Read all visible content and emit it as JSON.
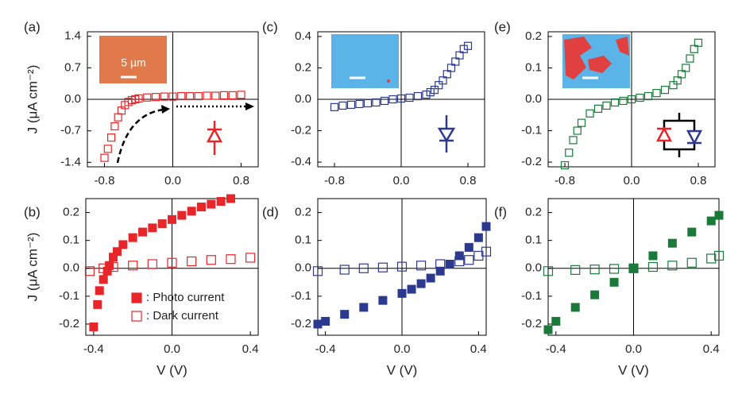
{
  "chart_data": [
    {
      "type": "scatter",
      "label": "(a)",
      "ylabel": "J (μA cm⁻²)",
      "inset_label": "5 µm",
      "xlim": [
        -1.0,
        1.0
      ],
      "xticks": [
        -0.8,
        {
          "value": 0,
          "label": "0.0"
        },
        0.8
      ],
      "ylim": [
        -1.5,
        1.5
      ],
      "yticks": [
        1.4,
        0.7,
        {
          "value": 0,
          "label": "0.0"
        },
        -0.7,
        -1.4
      ],
      "series": [
        {
          "color": "#e8262a",
          "filled": false,
          "x": [
            -0.8,
            -0.76,
            -0.72,
            -0.68,
            -0.64,
            -0.6,
            -0.56,
            -0.52,
            -0.48,
            -0.44,
            -0.4,
            -0.3,
            -0.2,
            -0.1,
            0,
            0.1,
            0.2,
            0.3,
            0.4,
            0.5,
            0.6,
            0.7,
            0.8
          ],
          "values": [
            -1.3,
            -1.1,
            -0.85,
            -0.6,
            -0.4,
            -0.25,
            -0.13,
            -0.06,
            -0.02,
            0.0,
            0.02,
            0.04,
            0.05,
            0.06,
            0.06,
            0.07,
            0.07,
            0.07,
            0.08,
            0.08,
            0.09,
            0.09,
            0.1
          ]
        }
      ]
    },
    {
      "type": "scatter",
      "label": "(b)",
      "ylabel": "J (μA cm⁻²)",
      "xlabel": "V (V)",
      "xlim": [
        -0.44,
        0.44
      ],
      "xticks": [
        -0.4,
        {
          "value": 0,
          "label": "0.0"
        },
        0.4
      ],
      "ylim": [
        -0.24,
        0.25
      ],
      "yticks": [
        0.2,
        0.1,
        {
          "value": 0,
          "label": "0.0"
        },
        -0.1,
        -0.2
      ],
      "series": [
        {
          "name": ": Photo current",
          "color": "#e8262a",
          "filled": true,
          "x": [
            -0.4,
            -0.38,
            -0.37,
            -0.35,
            -0.33,
            -0.32,
            -0.3,
            -0.28,
            -0.25,
            -0.2,
            -0.15,
            -0.1,
            -0.05,
            0,
            0.05,
            0.1,
            0.15,
            0.2,
            0.25,
            0.3
          ],
          "values": [
            -0.21,
            -0.13,
            -0.08,
            -0.04,
            -0.01,
            0.01,
            0.04,
            0.06,
            0.085,
            0.11,
            0.13,
            0.145,
            0.16,
            0.175,
            0.19,
            0.205,
            0.22,
            0.23,
            0.24,
            0.25
          ]
        },
        {
          "name": ": Dark current",
          "color": "#e8262a",
          "filled": false,
          "x": [
            -0.42,
            -0.35,
            -0.3,
            -0.2,
            -0.1,
            0,
            0.1,
            0.2,
            0.3,
            0.4
          ],
          "values": [
            -0.01,
            0.0,
            0.005,
            0.01,
            0.015,
            0.02,
            0.025,
            0.03,
            0.033,
            0.038
          ]
        }
      ]
    },
    {
      "type": "scatter",
      "label": "(c)",
      "xlim": [
        -1.0,
        1.0
      ],
      "xticks": [
        -0.8,
        {
          "value": 0,
          "label": "0.0"
        },
        0.8
      ],
      "ylim": [
        -0.43,
        0.43
      ],
      "yticks": [
        0.4,
        0.2,
        {
          "value": 0,
          "label": "0.0"
        },
        -0.2,
        -0.4
      ],
      "series": [
        {
          "color": "#2b3a8f",
          "filled": false,
          "x": [
            -0.8,
            -0.7,
            -0.6,
            -0.5,
            -0.4,
            -0.3,
            -0.2,
            -0.1,
            0,
            0.1,
            0.2,
            0.3,
            0.35,
            0.4,
            0.45,
            0.5,
            0.55,
            0.6,
            0.65,
            0.7,
            0.75,
            0.8
          ],
          "values": [
            -0.05,
            -0.04,
            -0.035,
            -0.03,
            -0.025,
            -0.02,
            -0.01,
            0,
            0.005,
            0.01,
            0.02,
            0.03,
            0.045,
            0.06,
            0.09,
            0.12,
            0.16,
            0.2,
            0.24,
            0.28,
            0.32,
            0.34
          ]
        }
      ]
    },
    {
      "type": "scatter",
      "label": "(d)",
      "xlabel": "V (V)",
      "xlim": [
        -0.44,
        0.44
      ],
      "xticks": [
        -0.4,
        {
          "value": 0,
          "label": "0.0"
        },
        0.4
      ],
      "ylim": [
        -0.24,
        0.25
      ],
      "yticks": [
        0.2,
        0.1,
        {
          "value": 0,
          "label": "0.0"
        },
        -0.1,
        -0.2
      ],
      "series": [
        {
          "color": "#2b3a8f",
          "filled": true,
          "x": [
            -0.44,
            -0.4,
            -0.3,
            -0.2,
            -0.1,
            0,
            0.05,
            0.1,
            0.15,
            0.2,
            0.25,
            0.3,
            0.35,
            0.4,
            0.44
          ],
          "values": [
            -0.2,
            -0.19,
            -0.165,
            -0.14,
            -0.115,
            -0.09,
            -0.075,
            -0.055,
            -0.035,
            -0.01,
            0.015,
            0.045,
            0.075,
            0.11,
            0.15
          ]
        },
        {
          "color": "#2b3a8f",
          "filled": false,
          "x": [
            -0.44,
            -0.3,
            -0.2,
            -0.1,
            0,
            0.1,
            0.2,
            0.3,
            0.35,
            0.4,
            0.44
          ],
          "values": [
            -0.01,
            -0.005,
            0,
            0.003,
            0.006,
            0.01,
            0.015,
            0.025,
            0.03,
            0.045,
            0.06
          ]
        }
      ]
    },
    {
      "type": "scatter",
      "label": "(e)",
      "xlim": [
        -1.0,
        1.0
      ],
      "xticks": [
        -0.8,
        {
          "value": 0,
          "label": "0.0"
        },
        0.8
      ],
      "ylim": [
        -0.215,
        0.215
      ],
      "yticks": [
        0.2,
        0.1,
        {
          "value": 0,
          "label": "0.0"
        },
        -0.1,
        -0.2
      ],
      "series": [
        {
          "color": "#1a7a3a",
          "filled": false,
          "x": [
            -0.8,
            -0.75,
            -0.7,
            -0.65,
            -0.6,
            -0.5,
            -0.4,
            -0.3,
            -0.2,
            -0.1,
            0,
            0.1,
            0.2,
            0.3,
            0.4,
            0.5,
            0.55,
            0.6,
            0.65,
            0.7,
            0.75,
            0.8
          ],
          "values": [
            -0.21,
            -0.17,
            -0.13,
            -0.1,
            -0.075,
            -0.045,
            -0.03,
            -0.02,
            -0.01,
            -0.005,
            0,
            0.005,
            0.01,
            0.02,
            0.03,
            0.045,
            0.06,
            0.08,
            0.1,
            0.13,
            0.16,
            0.18
          ]
        }
      ]
    },
    {
      "type": "scatter",
      "label": "(f)",
      "xlabel": "V (V)",
      "xlim": [
        -0.44,
        0.44
      ],
      "xticks": [
        -0.4,
        {
          "value": 0,
          "label": "0.0"
        },
        0.4
      ],
      "ylim": [
        -0.24,
        0.25
      ],
      "yticks": [
        0.2,
        0.1,
        {
          "value": 0,
          "label": "0.0"
        },
        -0.1,
        -0.2
      ],
      "series": [
        {
          "color": "#1a7a3a",
          "filled": true,
          "x": [
            -0.44,
            -0.4,
            -0.3,
            -0.2,
            -0.1,
            0,
            0.1,
            0.2,
            0.3,
            0.4,
            0.44
          ],
          "values": [
            -0.22,
            -0.19,
            -0.14,
            -0.095,
            -0.05,
            0,
            0.045,
            0.09,
            0.13,
            0.17,
            0.19
          ]
        },
        {
          "color": "#1a7a3a",
          "filled": false,
          "x": [
            -0.44,
            -0.3,
            -0.2,
            -0.1,
            0,
            0.1,
            0.2,
            0.3,
            0.4,
            0.44
          ],
          "values": [
            -0.01,
            -0.006,
            -0.004,
            -0.002,
            0,
            0.005,
            0.01,
            0.02,
            0.035,
            0.045
          ]
        }
      ]
    }
  ]
}
